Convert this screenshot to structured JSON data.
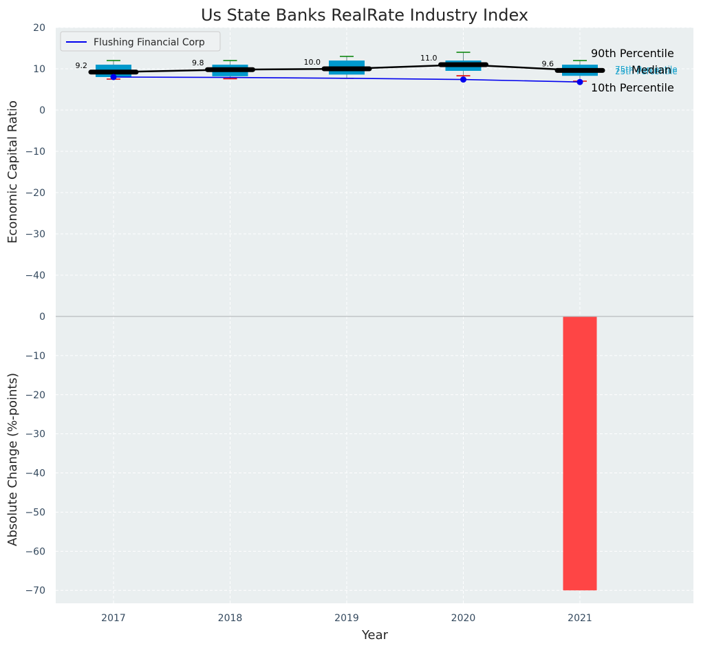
{
  "chart_data": [
    {
      "type": "box-line",
      "title": "Us State Banks RealRate Industry Index",
      "ylabel": "Economic Capital Ratio",
      "ylim": [
        -50,
        20
      ],
      "yticks": [
        20,
        10,
        0,
        -10,
        -20,
        -30,
        -40
      ],
      "grid": true,
      "legend": {
        "placement": "top-left",
        "entries": [
          "Flushing Financial Corp"
        ]
      },
      "categories": [
        "2017",
        "2018",
        "2019",
        "2020",
        "2021"
      ],
      "percentiles": {
        "p10": [
          7.5,
          7.6,
          7.7,
          8.3,
          7.0
        ],
        "p25": [
          8.0,
          8.2,
          8.6,
          9.5,
          8.3
        ],
        "median": [
          9.2,
          9.8,
          10.0,
          11.0,
          9.6
        ],
        "p75": [
          11.0,
          11.0,
          12.0,
          12.0,
          11.0
        ],
        "p90": [
          12.0,
          12.0,
          13.0,
          14.0,
          12.0
        ]
      },
      "median_labels": [
        "9.2",
        "9.8",
        "10.0",
        "11.0",
        "9.6"
      ],
      "series": [
        {
          "name": "Flushing Financial Corp",
          "values": [
            8.0,
            7.9,
            7.7,
            7.4,
            6.8
          ]
        }
      ],
      "annotations": [
        "90th Percentile",
        "75th Percentile",
        "Median",
        "25th Percentile",
        "10th Percentile"
      ],
      "colors": {
        "box": "#0099cc",
        "median": "#000000",
        "p90": "#008000",
        "p10": "#e00000",
        "company": "#0000ee"
      }
    },
    {
      "type": "bar",
      "xlabel": "Year",
      "ylabel": "Absolute Change (%-points)",
      "ylim": [
        -73.3,
        0
      ],
      "yticks": [
        0,
        -10,
        -20,
        -30,
        -40,
        -50,
        -60,
        -70
      ],
      "grid": true,
      "categories": [
        "2017",
        "2018",
        "2019",
        "2020",
        "2021"
      ],
      "values": [
        null,
        null,
        null,
        null,
        -70
      ],
      "colors": {
        "bar": "#ff3b3b"
      }
    }
  ]
}
